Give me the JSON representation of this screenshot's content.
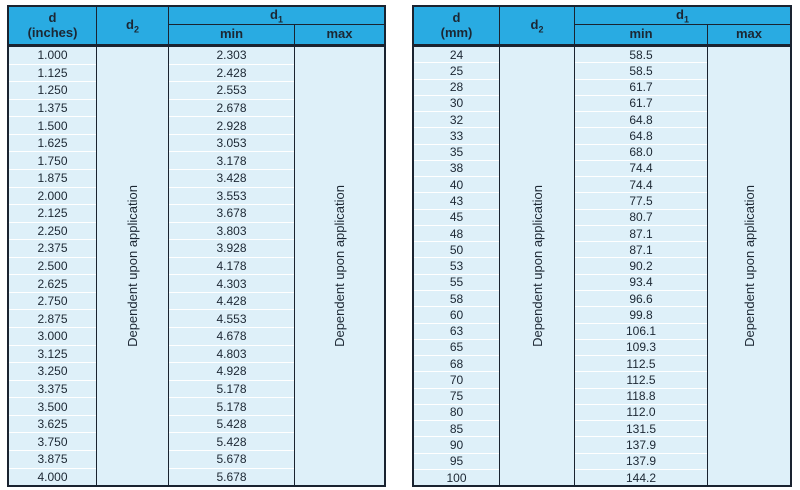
{
  "colors": {
    "header_bg": "#29abe2",
    "body_bg": "#def0f9",
    "border": "#1a2330",
    "text": "#1c2733",
    "row_divider": "#ffffff",
    "page_bg": "#ffffff"
  },
  "tables": [
    {
      "unit_label_line1": "d",
      "unit_label_line2": "(inches)",
      "d2_base": "d",
      "d2_sub": "2",
      "d1_base": "d",
      "d1_sub": "1",
      "min_label": "min",
      "max_label": "max",
      "d2_note": "Dependent upon application",
      "max_note": "Dependent upon application",
      "rows": [
        [
          "1.000",
          "2.303"
        ],
        [
          "1.125",
          "2.428"
        ],
        [
          "1.250",
          "2.553"
        ],
        [
          "1.375",
          "2.678"
        ],
        [
          "1.500",
          "2.928"
        ],
        [
          "1.625",
          "3.053"
        ],
        [
          "1.750",
          "3.178"
        ],
        [
          "1.875",
          "3.428"
        ],
        [
          "2.000",
          "3.553"
        ],
        [
          "2.125",
          "3.678"
        ],
        [
          "2.250",
          "3.803"
        ],
        [
          "2.375",
          "3.928"
        ],
        [
          "2.500",
          "4.178"
        ],
        [
          "2.625",
          "4.303"
        ],
        [
          "2.750",
          "4.428"
        ],
        [
          "2.875",
          "4.553"
        ],
        [
          "3.000",
          "4.678"
        ],
        [
          "3.125",
          "4.803"
        ],
        [
          "3.250",
          "4.928"
        ],
        [
          "3.375",
          "5.178"
        ],
        [
          "3.500",
          "5.178"
        ],
        [
          "3.625",
          "5.428"
        ],
        [
          "3.750",
          "5.428"
        ],
        [
          "3.875",
          "5.678"
        ],
        [
          "4.000",
          "5.678"
        ]
      ]
    },
    {
      "unit_label_line1": "d",
      "unit_label_line2": "(mm)",
      "d2_base": "d",
      "d2_sub": "2",
      "d1_base": "d",
      "d1_sub": "1",
      "min_label": "min",
      "max_label": "max",
      "d2_note": "Dependent upon application",
      "max_note": "Dependent upon application",
      "rows": [
        [
          "24",
          "58.5"
        ],
        [
          "25",
          "58.5"
        ],
        [
          "28",
          "61.7"
        ],
        [
          "30",
          "61.7"
        ],
        [
          "32",
          "64.8"
        ],
        [
          "33",
          "64.8"
        ],
        [
          "35",
          "68.0"
        ],
        [
          "38",
          "74.4"
        ],
        [
          "40",
          "74.4"
        ],
        [
          "43",
          "77.5"
        ],
        [
          "45",
          "80.7"
        ],
        [
          "48",
          "87.1"
        ],
        [
          "50",
          "87.1"
        ],
        [
          "53",
          "90.2"
        ],
        [
          "55",
          "93.4"
        ],
        [
          "58",
          "96.6"
        ],
        [
          "60",
          "99.8"
        ],
        [
          "63",
          "106.1"
        ],
        [
          "65",
          "109.3"
        ],
        [
          "68",
          "112.5"
        ],
        [
          "70",
          "112.5"
        ],
        [
          "75",
          "118.8"
        ],
        [
          "80",
          "112.0"
        ],
        [
          "85",
          "131.5"
        ],
        [
          "90",
          "137.9"
        ],
        [
          "95",
          "137.9"
        ],
        [
          "100",
          "144.2"
        ]
      ]
    }
  ]
}
